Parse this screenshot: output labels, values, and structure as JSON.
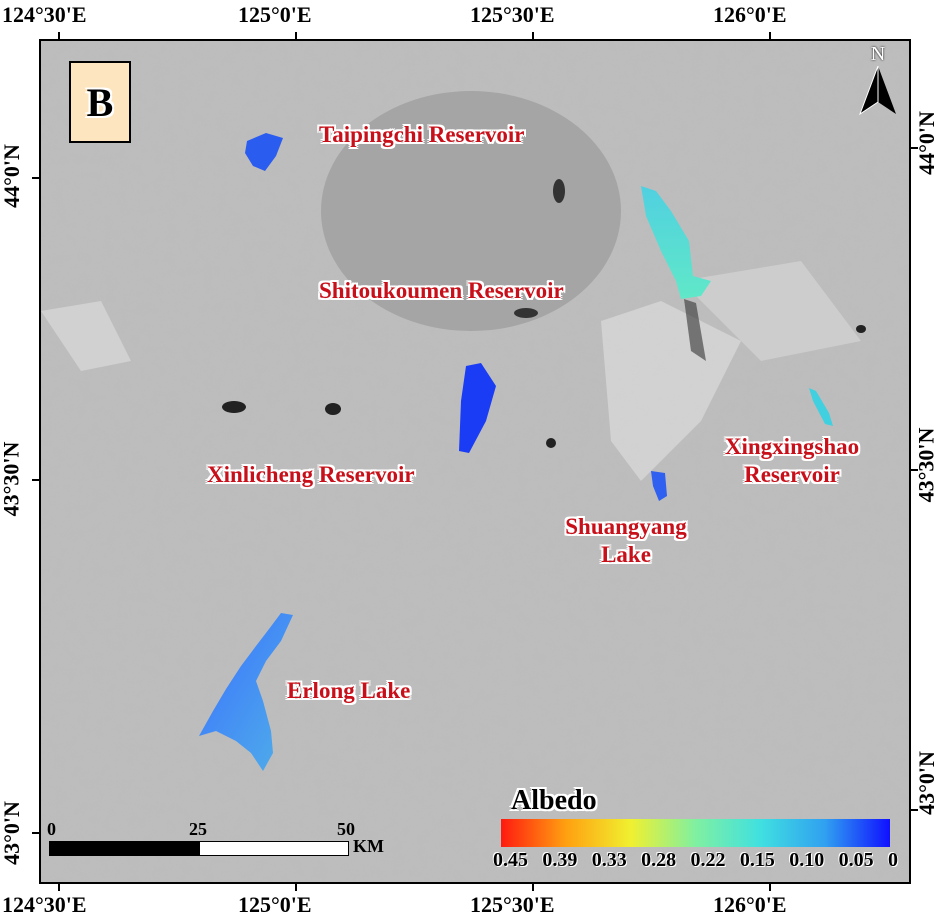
{
  "panel_label": "B",
  "axes": {
    "top": [
      "124°30'E",
      "125°0'E",
      "125°30'E",
      "126°0'E"
    ],
    "bottom": [
      "124°30'E",
      "125°0'E",
      "125°30'E",
      "126°0'E"
    ],
    "left": [
      "44°0'N",
      "43°30'N",
      "43°0'N"
    ],
    "right": [
      "44°0'N",
      "43°30'N",
      "43°0'N"
    ]
  },
  "places": {
    "taipingchi": "Taipingchi  Reservoir",
    "shitoukoumen": "Shitoukoumen  Reservoir",
    "xinlicheng": "Xinlicheng Reservoir",
    "xingxingshao_1": "Xingxingshao",
    "xingxingshao_2": "Reservoir",
    "shuangyang_1": "Shuangyang",
    "shuangyang_2": "Lake",
    "erlong": "Erlong Lake"
  },
  "north_arrow": "N",
  "legend": {
    "title": "Albedo",
    "labels": [
      "0.45",
      "0.39",
      "0.33",
      "0.28",
      "0.22",
      "0.15",
      "0.10",
      "0.05",
      "0"
    ],
    "colors": [
      "#ff1a10",
      "#ffa010",
      "#f0f030",
      "#80f0a0",
      "#40e0e0",
      "#30a0f0",
      "#1010ff"
    ]
  },
  "scalebar": {
    "ticks": [
      "0",
      "25",
      "50"
    ],
    "unit": "KM"
  }
}
